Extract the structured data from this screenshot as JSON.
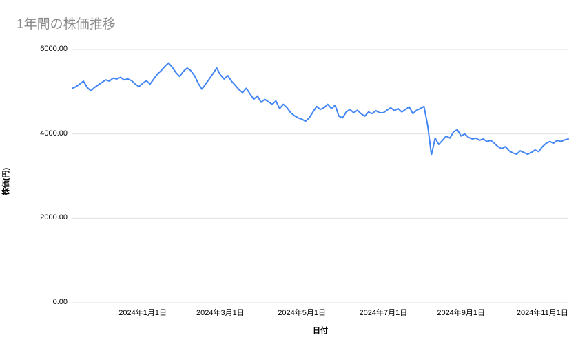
{
  "chart_data": {
    "type": "line",
    "title": "1年間の株価推移",
    "xlabel": "日付",
    "ylabel": "株価(円)",
    "ylim": [
      0,
      6000
    ],
    "y_tick_values": [
      0,
      2000,
      4000,
      6000
    ],
    "y_tick_labels": [
      "0.00",
      "2000.00",
      "4000.00",
      "6000.00"
    ],
    "x_ticks": [
      {
        "label": "2024年1月1日",
        "position": 0.1418
      },
      {
        "label": "2024年3月1日",
        "position": 0.2985
      },
      {
        "label": "2024年5月1日",
        "position": 0.4627
      },
      {
        "label": "2024年7月1日",
        "position": 0.6269
      },
      {
        "label": "2024年9月1日",
        "position": 0.7836
      },
      {
        "label": "2024年11月1日",
        "position": 0.9478
      }
    ],
    "grid": "horizontal-only",
    "legend": "none",
    "line_color": "#4285f4",
    "grid_color": "#e3e3e3",
    "title_color": "#8a8a8a",
    "series": [
      {
        "name": "株価",
        "color": "#4285f4",
        "values": [
          5080,
          5120,
          5180,
          5250,
          5100,
          5020,
          5100,
          5160,
          5220,
          5280,
          5250,
          5320,
          5300,
          5340,
          5280,
          5300,
          5260,
          5180,
          5120,
          5200,
          5260,
          5180,
          5300,
          5420,
          5500,
          5600,
          5680,
          5580,
          5450,
          5360,
          5480,
          5560,
          5500,
          5380,
          5200,
          5060,
          5180,
          5300,
          5430,
          5560,
          5400,
          5300,
          5380,
          5250,
          5150,
          5050,
          4980,
          5080,
          4950,
          4820,
          4900,
          4750,
          4820,
          4760,
          4700,
          4780,
          4600,
          4700,
          4620,
          4500,
          4430,
          4380,
          4350,
          4300,
          4380,
          4520,
          4650,
          4580,
          4620,
          4700,
          4600,
          4680,
          4420,
          4380,
          4520,
          4580,
          4500,
          4560,
          4480,
          4420,
          4520,
          4480,
          4550,
          4500,
          4500,
          4560,
          4620,
          4550,
          4600,
          4520,
          4580,
          4640,
          4480,
          4560,
          4600,
          4650,
          4200,
          3500,
          3900,
          3750,
          3850,
          3950,
          3900,
          4050,
          4100,
          3950,
          4000,
          3920,
          3880,
          3900,
          3850,
          3880,
          3820,
          3850,
          3780,
          3700,
          3650,
          3700,
          3600,
          3550,
          3520,
          3600,
          3560,
          3520,
          3560,
          3620,
          3580,
          3700,
          3780,
          3820,
          3780,
          3850,
          3820,
          3860,
          3880
        ]
      }
    ]
  }
}
